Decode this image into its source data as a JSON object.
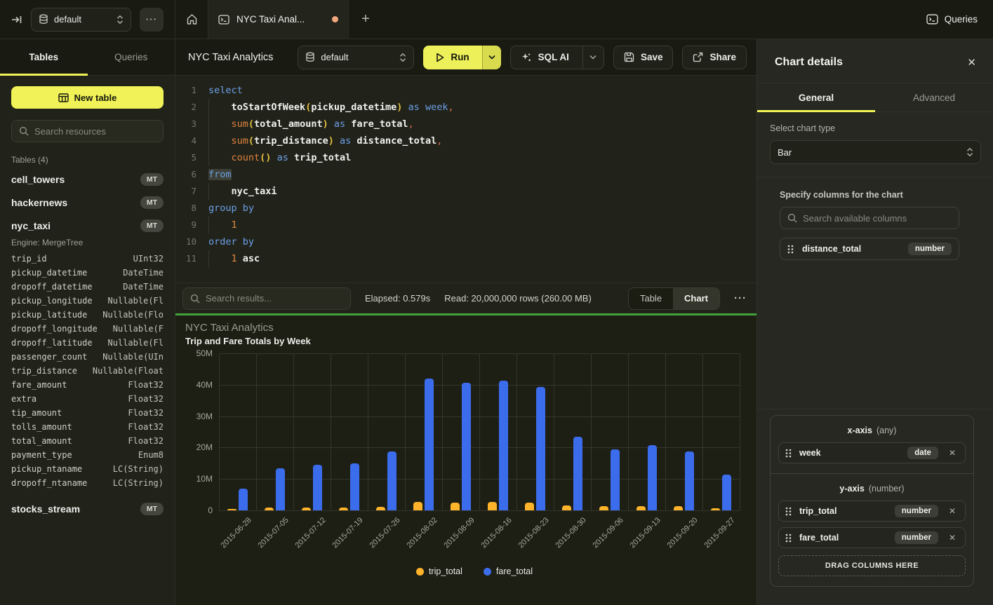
{
  "topbar": {
    "database_selector": "default",
    "more_label": "···",
    "tab_title": "NYC Taxi Anal...",
    "queries_label": "Queries"
  },
  "sidebar": {
    "tabs": [
      {
        "label": "Tables",
        "active": true
      },
      {
        "label": "Queries",
        "active": false
      }
    ],
    "new_table_label": "New table",
    "search_placeholder": "Search resources",
    "section_label": "Tables (4)",
    "tables": [
      {
        "name": "cell_towers",
        "badge": "MT"
      },
      {
        "name": "hackernews",
        "badge": "MT"
      },
      {
        "name": "nyc_taxi",
        "badge": "MT",
        "engine": "Engine: MergeTree",
        "columns": [
          {
            "name": "trip_id",
            "type": "UInt32"
          },
          {
            "name": "pickup_datetime",
            "type": "DateTime"
          },
          {
            "name": "dropoff_datetime",
            "type": "DateTime"
          },
          {
            "name": "pickup_longitude",
            "type": "Nullable(Fl"
          },
          {
            "name": "pickup_latitude",
            "type": "Nullable(Flo"
          },
          {
            "name": "dropoff_longitude",
            "type": "Nullable(F"
          },
          {
            "name": "dropoff_latitude",
            "type": "Nullable(Fl"
          },
          {
            "name": "passenger_count",
            "type": "Nullable(UIn"
          },
          {
            "name": "trip_distance",
            "type": "Nullable(Float"
          },
          {
            "name": "fare_amount",
            "type": "Float32"
          },
          {
            "name": "extra",
            "type": "Float32"
          },
          {
            "name": "tip_amount",
            "type": "Float32"
          },
          {
            "name": "tolls_amount",
            "type": "Float32"
          },
          {
            "name": "total_amount",
            "type": "Float32"
          },
          {
            "name": "payment_type",
            "type": "Enum8"
          },
          {
            "name": "pickup_ntaname",
            "type": "LC(String)"
          },
          {
            "name": "dropoff_ntaname",
            "type": "LC(String)"
          }
        ]
      },
      {
        "name": "stocks_stream",
        "badge": "MT"
      }
    ]
  },
  "editor_header": {
    "title": "NYC Taxi Analytics",
    "database_selector": "default",
    "run_label": "Run",
    "sql_ai_label": "SQL AI",
    "save_label": "Save",
    "share_label": "Share"
  },
  "editor": {
    "lines": [
      [
        [
          "select",
          "kw"
        ]
      ],
      [
        [
          "    ",
          ""
        ],
        [
          "toStartOfWeek",
          "id"
        ],
        [
          "(",
          "par"
        ],
        [
          "pickup_datetime",
          "id"
        ],
        [
          ")",
          "par"
        ],
        [
          " ",
          ""
        ],
        [
          "as",
          "kw"
        ],
        [
          " ",
          ""
        ],
        [
          "week",
          "kw"
        ],
        [
          ",",
          "comma"
        ]
      ],
      [
        [
          "    ",
          ""
        ],
        [
          "sum",
          "fn"
        ],
        [
          "(",
          "par"
        ],
        [
          "total_amount",
          "id"
        ],
        [
          ")",
          "par"
        ],
        [
          " ",
          ""
        ],
        [
          "as",
          "kw"
        ],
        [
          " ",
          ""
        ],
        [
          "fare_total",
          "id"
        ],
        [
          ",",
          "comma"
        ]
      ],
      [
        [
          "    ",
          ""
        ],
        [
          "sum",
          "fn"
        ],
        [
          "(",
          "par"
        ],
        [
          "trip_distance",
          "id"
        ],
        [
          ")",
          "par"
        ],
        [
          " ",
          ""
        ],
        [
          "as",
          "kw"
        ],
        [
          " ",
          ""
        ],
        [
          "distance_total",
          "id"
        ],
        [
          ",",
          "comma"
        ]
      ],
      [
        [
          "    ",
          ""
        ],
        [
          "count",
          "fn"
        ],
        [
          "()",
          "par"
        ],
        [
          " ",
          ""
        ],
        [
          "as",
          "kw"
        ],
        [
          " ",
          ""
        ],
        [
          "trip_total",
          "id"
        ]
      ],
      [
        [
          "from",
          "kw sel"
        ]
      ],
      [
        [
          "    ",
          ""
        ],
        [
          "nyc_taxi",
          "id"
        ]
      ],
      [
        [
          "group by",
          "kw"
        ]
      ],
      [
        [
          "    ",
          ""
        ],
        [
          "1",
          "num"
        ]
      ],
      [
        [
          "order by",
          "kw"
        ]
      ],
      [
        [
          "    ",
          ""
        ],
        [
          "1",
          "num"
        ],
        [
          " ",
          ""
        ],
        [
          "asc",
          "id"
        ]
      ]
    ]
  },
  "results_bar": {
    "search_placeholder": "Search results...",
    "elapsed": "Elapsed: 0.579s",
    "read": "Read: 20,000,000 rows (260.00 MB)",
    "more_label": "···",
    "view_toggle": [
      {
        "label": "Table",
        "active": false
      },
      {
        "label": "Chart",
        "active": true
      }
    ]
  },
  "chart_data": {
    "type": "bar",
    "title": "NYC Taxi Analytics",
    "subtitle": "Trip and Fare Totals by Week",
    "categories": [
      "2015-06-28",
      "2015-07-05",
      "2015-07-12",
      "2015-07-19",
      "2015-07-26",
      "2015-08-02",
      "2015-08-09",
      "2015-08-16",
      "2015-08-23",
      "2015-08-30",
      "2015-09-06",
      "2015-09-13",
      "2015-09-20",
      "2015-09-27"
    ],
    "series": [
      {
        "name": "trip_total",
        "color": "#fdb32a",
        "values": [
          0.35,
          0.85,
          0.85,
          0.9,
          1.1,
          2.7,
          2.5,
          2.7,
          2.5,
          1.6,
          1.4,
          1.3,
          1.4,
          0.7
        ]
      },
      {
        "name": "fare_total",
        "color": "#3b6ceb",
        "values": [
          6.9,
          13.5,
          14.5,
          15.0,
          18.7,
          42.0,
          40.7,
          41.2,
          39.3,
          23.5,
          19.5,
          20.8,
          18.7,
          11.3
        ]
      }
    ],
    "value_unit": "millions",
    "ylim": [
      0,
      50
    ],
    "y_ticks": [
      "50M",
      "40M",
      "30M",
      "20M",
      "10M",
      "0"
    ],
    "grid": true,
    "legend_position": "bottom"
  },
  "chart_panel": {
    "title": "Chart details",
    "close_label": "✕",
    "tabs": [
      {
        "label": "General",
        "active": true
      },
      {
        "label": "Advanced",
        "active": false
      }
    ],
    "chart_type_label": "Select chart type",
    "chart_type_value": "Bar",
    "columns_label": "Specify columns for the chart",
    "columns_search_placeholder": "Search available columns",
    "available_columns": [
      {
        "name": "distance_total",
        "type": "number"
      }
    ],
    "x_axis": {
      "label": "x-axis",
      "hint": "(any)",
      "items": [
        {
          "name": "week",
          "type": "date"
        }
      ]
    },
    "y_axis": {
      "label": "y-axis",
      "hint": "(number)",
      "items": [
        {
          "name": "trip_total",
          "type": "number"
        },
        {
          "name": "fare_total",
          "type": "number"
        }
      ]
    },
    "drop_label": "DRAG COLUMNS HERE"
  },
  "colors": {
    "accent_yellow": "#f0f257",
    "bar_blue": "#3b6ceb",
    "bar_amber": "#fdb32a",
    "run_green_line": "#43a13a",
    "tab_dirty_dot": "#f2a87e"
  }
}
